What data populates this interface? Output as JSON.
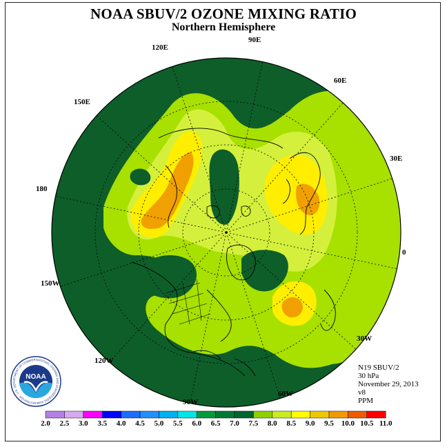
{
  "title": "NOAA SBUV/2 OZONE MIXING RATIO",
  "subtitle": "Northern Hemisphere",
  "longitudes": [
    "90E",
    "60E",
    "30E",
    "0",
    "30W",
    "60W",
    "90W",
    "120W",
    "150W",
    "180",
    "150E",
    "120E"
  ],
  "info": {
    "satellite": "N19 SBUV/2",
    "level": "30 hPa",
    "date": "November 29, 2013",
    "version": "v8",
    "units": "PPM"
  },
  "logo": {
    "text": "NOAA",
    "ring_text": "NATIONAL OCEANIC AND ATMOSPHERIC ADMINISTRATION · U.S. DEPARTMENT OF COMMERCE"
  },
  "colorbar": {
    "values": [
      "2.0",
      "2.5",
      "3.0",
      "3.5",
      "4.0",
      "4.5",
      "5.0",
      "5.5",
      "6.0",
      "6.5",
      "7.0",
      "7.5",
      "8.0",
      "8.5",
      "9.0",
      "9.5",
      "10.0",
      "10.5",
      "11.0"
    ],
    "colors": [
      "#b57fe8",
      "#d8a8f0",
      "#ff00ff",
      "#0000ff",
      "#1e6cff",
      "#1e90ff",
      "#00b0f0",
      "#00e5e5",
      "#009a3c",
      "#007a33",
      "#006630",
      "#90d000",
      "#c8ec20",
      "#ffff00",
      "#f0c800",
      "#f09a00",
      "#f05a00",
      "#ff0000",
      "#8b4513"
    ]
  },
  "colors": {
    "dark_green": "#0e5e2a",
    "mid_green": "#1e7a34",
    "lime": "#a8e000",
    "yellow_green": "#d4f03c",
    "yellow": "#ffee00",
    "orange": "#f0a000"
  }
}
